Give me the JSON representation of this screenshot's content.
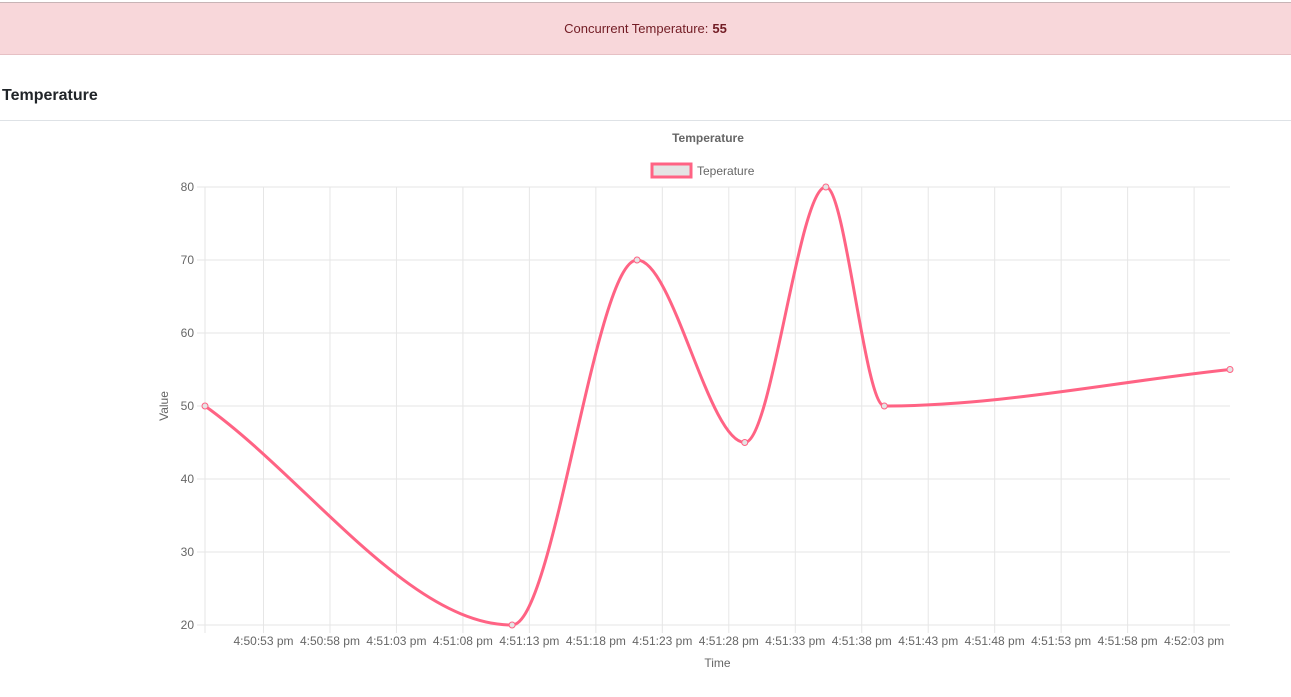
{
  "alert": {
    "label": "Concurrent Temperature:",
    "value": "55"
  },
  "card": {
    "title": "Temperature"
  },
  "colors": {
    "line": "#ff6384",
    "legend_fill": "#e4e4e4",
    "grid": "#e6e6e6",
    "alert_bg": "#f8d7da",
    "alert_text": "#721c24"
  },
  "chart_data": {
    "type": "line",
    "title": "Temperature",
    "xlabel": "Time",
    "ylabel": "Value",
    "ylim": [
      20,
      80
    ],
    "y_ticks": [
      20,
      30,
      40,
      50,
      60,
      70,
      80
    ],
    "x_tick_labels": [
      "4:50:53 pm",
      "4:50:58 pm",
      "4:51:03 pm",
      "4:51:08 pm",
      "4:51:13 pm",
      "4:51:18 pm",
      "4:51:23 pm",
      "4:51:28 pm",
      "4:51:33 pm",
      "4:51:38 pm",
      "4:51:43 pm",
      "4:51:48 pm",
      "4:51:53 pm",
      "4:51:58 pm",
      "4:52:03 pm"
    ],
    "x_tick_seconds": [
      53,
      58,
      63,
      68,
      73,
      78,
      83,
      88,
      93,
      98,
      103,
      108,
      113,
      118,
      123
    ],
    "x_range_seconds": [
      48.6,
      125.7
    ],
    "grid": true,
    "legend_position": "top",
    "series": [
      {
        "name": "Teperature",
        "x_seconds": [
          48.6,
          71.7,
          81.1,
          89.2,
          95.3,
          99.7,
          125.7
        ],
        "values": [
          50,
          20,
          70,
          45,
          80,
          50,
          55
        ]
      }
    ]
  }
}
